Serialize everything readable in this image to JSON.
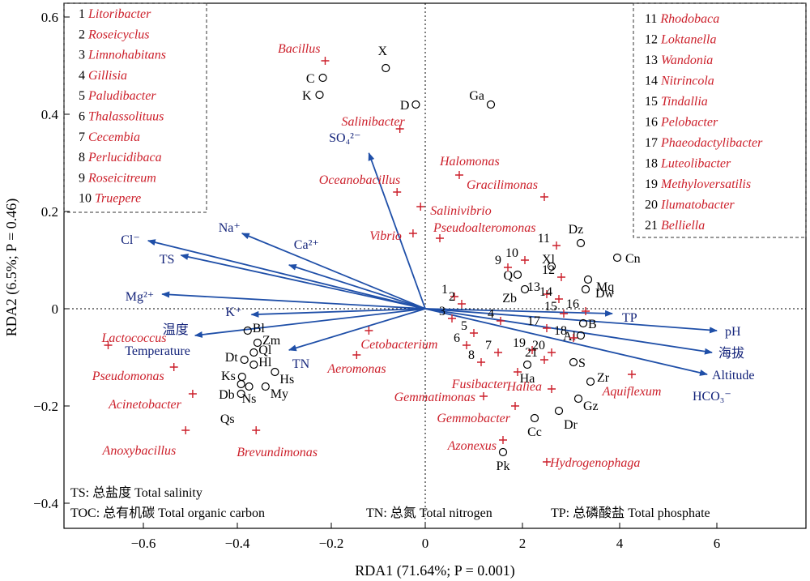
{
  "chart_data": {
    "type": "scatter",
    "title": "",
    "xlabel": "RDA1 (71.64%; P = 0.001)",
    "ylabel": "RDA2 (6.5%; P = 0.46)",
    "x_ticks": [
      -0.6,
      -0.4,
      -0.2,
      0,
      2,
      4,
      6
    ],
    "y_ticks": [
      -0.4,
      -0.2,
      0,
      0.2,
      0.4,
      0.6
    ],
    "colors": {
      "genus": "#cc1f2a",
      "env": "#13237a",
      "axis": "#000000",
      "arrow": "#1f4fa8"
    },
    "env_vectors": [
      {
        "label": "SO₄²⁻",
        "x": -0.12,
        "y": 0.32
      },
      {
        "label": "Na⁺",
        "x": -0.39,
        "y": 0.155
      },
      {
        "label": "Ca²⁺",
        "x": -0.29,
        "y": 0.09
      },
      {
        "label": "Cl⁻",
        "x": -0.59,
        "y": 0.14
      },
      {
        "label": "TS",
        "x": -0.52,
        "y": 0.11
      },
      {
        "label": "Mg²⁺",
        "x": -0.56,
        "y": 0.03
      },
      {
        "label": "K⁺",
        "x": -0.37,
        "y": -0.012
      },
      {
        "label": "温度",
        "x": -0.49,
        "y": -0.055
      },
      {
        "label": "Temperature",
        "x": -0.49,
        "y": -0.055
      },
      {
        "label": "TN",
        "x": -0.29,
        "y": -0.085
      },
      {
        "label": "TP",
        "x": 3.85,
        "y": -0.01
      },
      {
        "label": "pH",
        "x": 6.0,
        "y": -0.045
      },
      {
        "label": "海拔",
        "x": 5.9,
        "y": -0.09
      },
      {
        "label": "Altitude",
        "x": 5.8,
        "y": -0.135
      },
      {
        "label": "HCO₃⁻",
        "x": 5.8,
        "y": -0.135
      }
    ],
    "sites": [
      {
        "label": "X",
        "x": -0.084,
        "y": 0.495
      },
      {
        "label": "C",
        "x": -0.218,
        "y": 0.475
      },
      {
        "label": "K",
        "x": -0.225,
        "y": 0.44
      },
      {
        "label": "D",
        "x": -0.02,
        "y": 0.42
      },
      {
        "label": "Ga",
        "x": 1.35,
        "y": 0.42
      },
      {
        "label": "Dz",
        "x": 3.2,
        "y": 0.135
      },
      {
        "label": "Cn",
        "x": 3.95,
        "y": 0.105
      },
      {
        "label": "Xl",
        "x": 2.6,
        "y": 0.087
      },
      {
        "label": "Q",
        "x": 1.9,
        "y": 0.07
      },
      {
        "label": "Mq",
        "x": 3.35,
        "y": 0.06
      },
      {
        "label": "Zb",
        "x": 2.05,
        "y": 0.04
      },
      {
        "label": "Dw",
        "x": 3.3,
        "y": 0.04
      },
      {
        "label": "B",
        "x": 3.25,
        "y": -0.03
      },
      {
        "label": "Al",
        "x": 3.2,
        "y": -0.055
      },
      {
        "label": "Bl",
        "x": -0.378,
        "y": -0.045
      },
      {
        "label": "Zm",
        "x": -0.357,
        "y": -0.07
      },
      {
        "label": "Ql",
        "x": -0.365,
        "y": -0.09
      },
      {
        "label": "Dt",
        "x": -0.385,
        "y": -0.105
      },
      {
        "label": "Hl",
        "x": -0.365,
        "y": -0.115
      },
      {
        "label": "Ks",
        "x": -0.39,
        "y": -0.14
      },
      {
        "label": "Hs",
        "x": -0.32,
        "y": -0.13
      },
      {
        "label": "Db",
        "x": -0.392,
        "y": -0.155
      },
      {
        "label": "Ns",
        "x": -0.375,
        "y": -0.16
      },
      {
        "label": "My",
        "x": -0.34,
        "y": -0.16
      },
      {
        "label": "Qs",
        "x": -0.392,
        "y": -0.175
      },
      {
        "label": "S",
        "x": 3.05,
        "y": -0.11
      },
      {
        "label": "Ha",
        "x": 2.1,
        "y": -0.115
      },
      {
        "label": "Zr",
        "x": 3.4,
        "y": -0.15
      },
      {
        "label": "Gz",
        "x": 3.15,
        "y": -0.185
      },
      {
        "label": "Dr",
        "x": 2.75,
        "y": -0.21
      },
      {
        "label": "Cc",
        "x": 2.25,
        "y": -0.225
      },
      {
        "label": "Pk",
        "x": 1.6,
        "y": -0.295
      }
    ],
    "genera": [
      {
        "label": "Bacillus",
        "x": -0.213,
        "y": 0.51
      },
      {
        "label": "Salinibacter",
        "x": -0.054,
        "y": 0.37
      },
      {
        "label": "Oceanobacillus",
        "x": -0.06,
        "y": 0.24
      },
      {
        "label": "Halomonas",
        "x": 0.7,
        "y": 0.275
      },
      {
        "label": "Gracilimonas",
        "x": 2.45,
        "y": 0.23
      },
      {
        "label": "Salinivibrio",
        "x": -0.01,
        "y": 0.21
      },
      {
        "label": "Vibrio",
        "x": -0.026,
        "y": 0.155
      },
      {
        "label": "Pseudoalteromonas",
        "x": 0.3,
        "y": 0.145
      },
      {
        "label": "Lactococcus",
        "x": -0.675,
        "y": -0.075
      },
      {
        "label": "Cetobacterium",
        "x": -0.12,
        "y": -0.045
      },
      {
        "label": "Aeromonas",
        "x": -0.146,
        "y": -0.095
      },
      {
        "label": "Pseudomonas",
        "x": -0.535,
        "y": -0.12
      },
      {
        "label": "Acinetobacter",
        "x": -0.495,
        "y": -0.175
      },
      {
        "label": "Anoxybacillus",
        "x": -0.51,
        "y": -0.25
      },
      {
        "label": "Brevundimonas",
        "x": -0.36,
        "y": -0.25
      },
      {
        "label": "Fusibacter",
        "x": 1.9,
        "y": -0.13
      },
      {
        "label": "Haliea",
        "x": 2.6,
        "y": -0.165
      },
      {
        "label": "Gemmatimonas",
        "x": 1.2,
        "y": -0.18
      },
      {
        "label": "Gemmobacter",
        "x": 1.85,
        "y": -0.2
      },
      {
        "label": "Azonexus",
        "x": 1.6,
        "y": -0.27
      },
      {
        "label": "Aquiflexum",
        "x": 4.25,
        "y": -0.135
      },
      {
        "label": "Hydrogenophaga",
        "x": 2.5,
        "y": -0.315
      }
    ],
    "genus_markers": [
      {
        "label": "1",
        "x": 0.6,
        "y": 0.025
      },
      {
        "label": "2",
        "x": 0.75,
        "y": 0.01
      },
      {
        "label": "3",
        "x": 0.55,
        "y": -0.02
      },
      {
        "label": "4",
        "x": 1.55,
        "y": -0.025
      },
      {
        "label": "5",
        "x": 1.0,
        "y": -0.05
      },
      {
        "label": "6",
        "x": 0.85,
        "y": -0.075
      },
      {
        "label": "7",
        "x": 1.5,
        "y": -0.09
      },
      {
        "label": "8",
        "x": 1.15,
        "y": -0.11
      },
      {
        "label": "9",
        "x": 1.7,
        "y": 0.085
      },
      {
        "label": "10",
        "x": 2.05,
        "y": 0.1
      },
      {
        "label": "11",
        "x": 2.7,
        "y": 0.13
      },
      {
        "label": "12",
        "x": 2.8,
        "y": 0.065
      },
      {
        "label": "13",
        "x": 2.5,
        "y": 0.03
      },
      {
        "label": "14",
        "x": 2.75,
        "y": 0.02
      },
      {
        "label": "15",
        "x": 2.85,
        "y": -0.01
      },
      {
        "label": "16",
        "x": 3.3,
        "y": -0.005
      },
      {
        "label": "17",
        "x": 2.5,
        "y": -0.04
      },
      {
        "label": "18",
        "x": 3.05,
        "y": -0.06
      },
      {
        "label": "19",
        "x": 2.2,
        "y": -0.085
      },
      {
        "label": "20",
        "x": 2.6,
        "y": -0.09
      },
      {
        "label": "21",
        "x": 2.45,
        "y": -0.105
      }
    ],
    "legend_left": [
      {
        "num": "1",
        "name": "Litoribacter"
      },
      {
        "num": "2",
        "name": "Roseicyclus"
      },
      {
        "num": "3",
        "name": "Limnohabitans"
      },
      {
        "num": "4",
        "name": "Gillisia"
      },
      {
        "num": "5",
        "name": "Paludibacter"
      },
      {
        "num": "6",
        "name": "Thalassolituus"
      },
      {
        "num": "7",
        "name": "Cecembia"
      },
      {
        "num": "8",
        "name": "Perlucidibaca"
      },
      {
        "num": "9",
        "name": "Roseicitreum"
      },
      {
        "num": "10",
        "name": "Truepere"
      }
    ],
    "legend_right": [
      {
        "num": "11",
        "name": "Rhodobaca"
      },
      {
        "num": "12",
        "name": "Loktanella"
      },
      {
        "num": "13",
        "name": "Wandonia"
      },
      {
        "num": "14",
        "name": "Nitrincola"
      },
      {
        "num": "15",
        "name": "Tindallia"
      },
      {
        "num": "16",
        "name": "Pelobacter"
      },
      {
        "num": "17",
        "name": "Phaeodactylibacter"
      },
      {
        "num": "18",
        "name": "Luteolibacter"
      },
      {
        "num": "19",
        "name": "Methyloversatilis"
      },
      {
        "num": "20",
        "name": "Ilumatobacter"
      },
      {
        "num": "21",
        "name": "Belliella"
      }
    ],
    "notes": {
      "ts": "TS: 总盐度 Total salinity",
      "toc": "TOC: 总有机碳 Total organic carbon",
      "tn": "TN: 总氮 Total nitrogen",
      "tp": "TP: 总磷酸盐 Total phosphate"
    }
  }
}
